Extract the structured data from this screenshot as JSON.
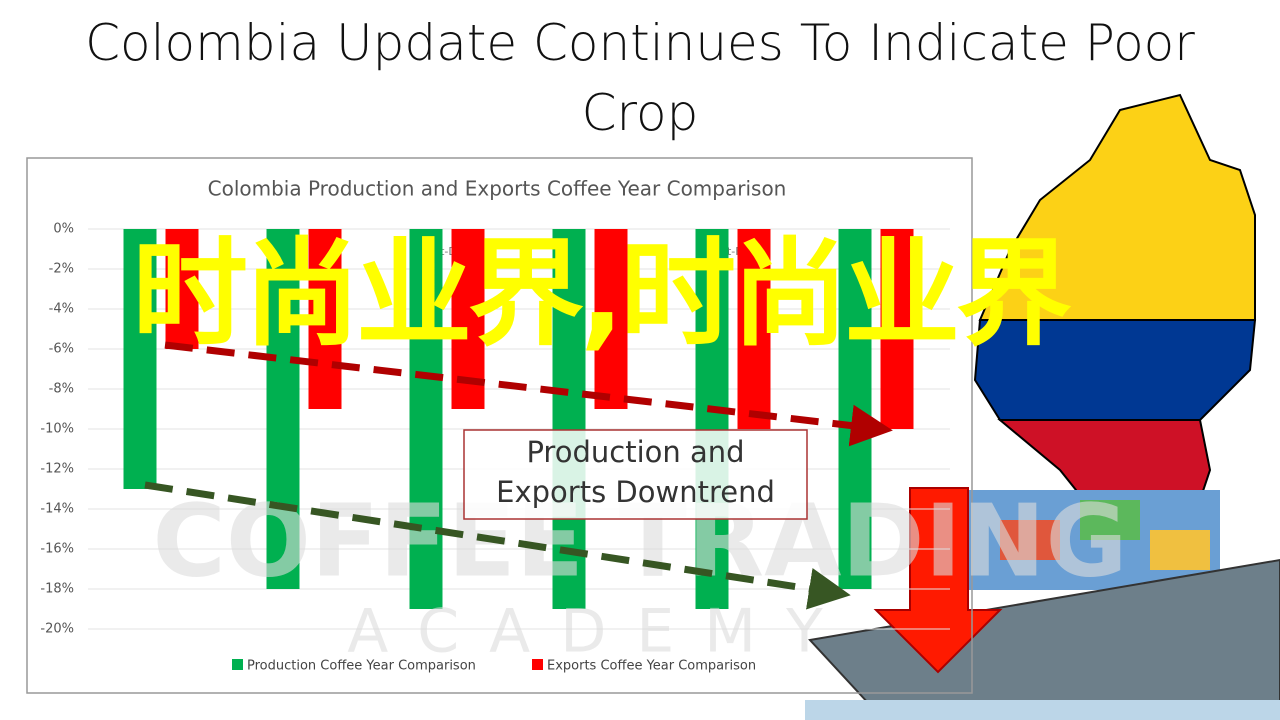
{
  "slide_title": "Colombia Update Continues To Indicate Poor Crop",
  "overlay_text": "时尚业界,时尚业界",
  "watermark": [
    "COFFEE TRADING",
    "ACADEMY"
  ],
  "chart_data": {
    "type": "bar",
    "title": "Colombia Production and Exports Coffee Year Comparison",
    "categories": [
      null,
      null,
      "Oct-Dec",
      null,
      "Oct-Feb",
      null
    ],
    "series": [
      {
        "name": "Production Coffee Year Comparison",
        "color": "#00b050",
        "values": [
          -13,
          -18,
          -19,
          -19,
          -19,
          -18
        ]
      },
      {
        "name": "Exports Coffee Year Comparison",
        "color": "#ff0000",
        "values": [
          -6,
          -9,
          -9,
          -9,
          -10,
          -10
        ]
      }
    ],
    "ylim": [
      -20,
      0
    ],
    "yticks": [
      {
        "value": 0,
        "label": "0%"
      },
      {
        "value": -2,
        "label": "-2%"
      },
      {
        "value": -4,
        "label": "-4%"
      },
      {
        "value": -6,
        "label": "-6%"
      },
      {
        "value": -8,
        "label": "-8%"
      },
      {
        "value": -10,
        "label": "-10%"
      },
      {
        "value": -12,
        "label": "-12%"
      },
      {
        "value": -14,
        "label": "-14%"
      },
      {
        "value": -16,
        "label": "-16%"
      },
      {
        "value": -18,
        "label": "-18%"
      },
      {
        "value": -20,
        "label": "-20%"
      }
    ],
    "grid": true,
    "legend": "bottom",
    "annotation": "Production and Exports Downtrend"
  }
}
